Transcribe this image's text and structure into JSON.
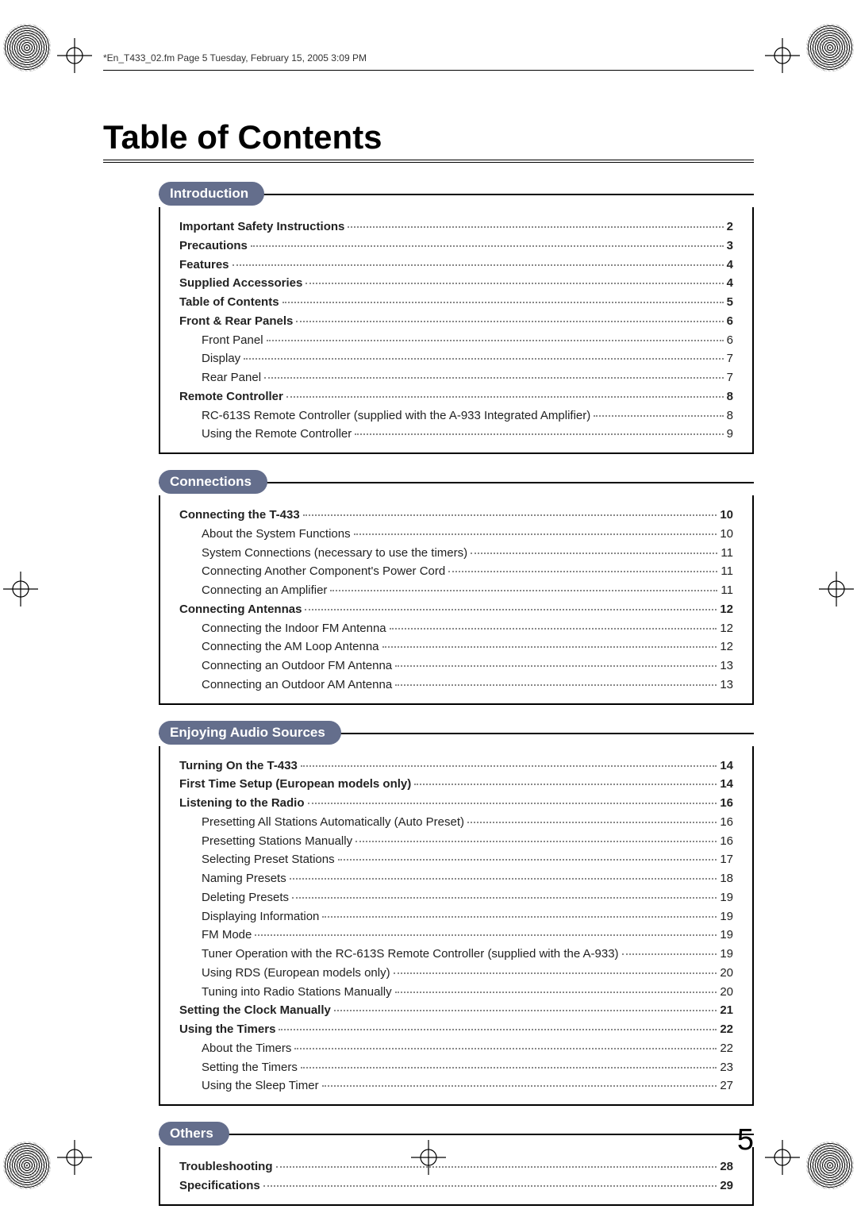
{
  "header": {
    "filepath": "*En_T433_02.fm  Page 5  Tuesday, February 15, 2005  3:09 PM"
  },
  "title": "Table of Contents",
  "page_number": "5",
  "colors": {
    "tab_bg": "#646e8c",
    "tab_fg": "#ffffff",
    "rule": "#000000",
    "dots": "#888888"
  },
  "sections": [
    {
      "name": "Introduction",
      "items": [
        {
          "label": "Important Safety Instructions",
          "page": "2",
          "bold": true,
          "sub": false
        },
        {
          "label": "Precautions",
          "page": "3",
          "bold": true,
          "sub": false
        },
        {
          "label": "Features",
          "page": "4",
          "bold": true,
          "sub": false
        },
        {
          "label": "Supplied Accessories",
          "page": "4",
          "bold": true,
          "sub": false
        },
        {
          "label": "Table of Contents",
          "page": "5",
          "bold": true,
          "sub": false
        },
        {
          "label": "Front & Rear Panels",
          "page": "6",
          "bold": true,
          "sub": false
        },
        {
          "label": "Front Panel",
          "page": "6",
          "bold": false,
          "sub": true
        },
        {
          "label": "Display",
          "page": "7",
          "bold": false,
          "sub": true
        },
        {
          "label": "Rear Panel",
          "page": "7",
          "bold": false,
          "sub": true
        },
        {
          "label": "Remote Controller",
          "page": "8",
          "bold": true,
          "sub": false
        },
        {
          "label": "RC-613S Remote Controller (supplied with the A-933 Integrated Amplifier)",
          "page": "8",
          "bold": false,
          "sub": true
        },
        {
          "label": "Using the Remote Controller",
          "page": "9",
          "bold": false,
          "sub": true
        }
      ]
    },
    {
      "name": "Connections",
      "items": [
        {
          "label": "Connecting the T-433",
          "page": "10",
          "bold": true,
          "sub": false
        },
        {
          "label": "About the System Functions",
          "page": "10",
          "bold": false,
          "sub": true
        },
        {
          "label": "System Connections (necessary to use the timers)",
          "page": "11",
          "bold": false,
          "sub": true
        },
        {
          "label": "Connecting Another Component's Power Cord",
          "page": "11",
          "bold": false,
          "sub": true
        },
        {
          "label": "Connecting an Amplifier",
          "page": "11",
          "bold": false,
          "sub": true
        },
        {
          "label": "Connecting Antennas",
          "page": "12",
          "bold": true,
          "sub": false
        },
        {
          "label": "Connecting the Indoor FM Antenna",
          "page": "12",
          "bold": false,
          "sub": true
        },
        {
          "label": "Connecting the AM Loop Antenna",
          "page": "12",
          "bold": false,
          "sub": true
        },
        {
          "label": "Connecting an Outdoor FM Antenna",
          "page": "13",
          "bold": false,
          "sub": true
        },
        {
          "label": "Connecting an Outdoor AM Antenna",
          "page": "13",
          "bold": false,
          "sub": true
        }
      ]
    },
    {
      "name": "Enjoying Audio Sources",
      "items": [
        {
          "label": "Turning On the T-433",
          "page": "14",
          "bold": true,
          "sub": false
        },
        {
          "label": "First Time Setup (European models only)",
          "page": "14",
          "bold": true,
          "sub": false
        },
        {
          "label": "Listening to the Radio",
          "page": "16",
          "bold": true,
          "sub": false
        },
        {
          "label": "Presetting All Stations Automatically (Auto Preset)",
          "page": "16",
          "bold": false,
          "sub": true
        },
        {
          "label": "Presetting Stations Manually",
          "page": "16",
          "bold": false,
          "sub": true
        },
        {
          "label": "Selecting Preset Stations",
          "page": "17",
          "bold": false,
          "sub": true
        },
        {
          "label": "Naming Presets",
          "page": "18",
          "bold": false,
          "sub": true
        },
        {
          "label": "Deleting Presets",
          "page": "19",
          "bold": false,
          "sub": true
        },
        {
          "label": "Displaying Information",
          "page": "19",
          "bold": false,
          "sub": true
        },
        {
          "label": "FM Mode",
          "page": "19",
          "bold": false,
          "sub": true
        },
        {
          "label": "Tuner Operation with the RC-613S Remote Controller (supplied with the A-933)",
          "page": "19",
          "bold": false,
          "sub": true
        },
        {
          "label": "Using RDS (European models only)",
          "page": "20",
          "bold": false,
          "sub": true
        },
        {
          "label": "Tuning into Radio Stations Manually",
          "page": "20",
          "bold": false,
          "sub": true
        },
        {
          "label": "Setting the Clock Manually",
          "page": "21",
          "bold": true,
          "sub": false
        },
        {
          "label": "Using the Timers",
          "page": "22",
          "bold": true,
          "sub": false
        },
        {
          "label": "About the Timers",
          "page": "22",
          "bold": false,
          "sub": true
        },
        {
          "label": "Setting the Timers",
          "page": "23",
          "bold": false,
          "sub": true
        },
        {
          "label": "Using the Sleep Timer",
          "page": "27",
          "bold": false,
          "sub": true
        }
      ]
    },
    {
      "name": "Others",
      "items": [
        {
          "label": "Troubleshooting",
          "page": "28",
          "bold": true,
          "sub": false
        },
        {
          "label": "Specifications",
          "page": "29",
          "bold": true,
          "sub": false
        }
      ]
    }
  ]
}
